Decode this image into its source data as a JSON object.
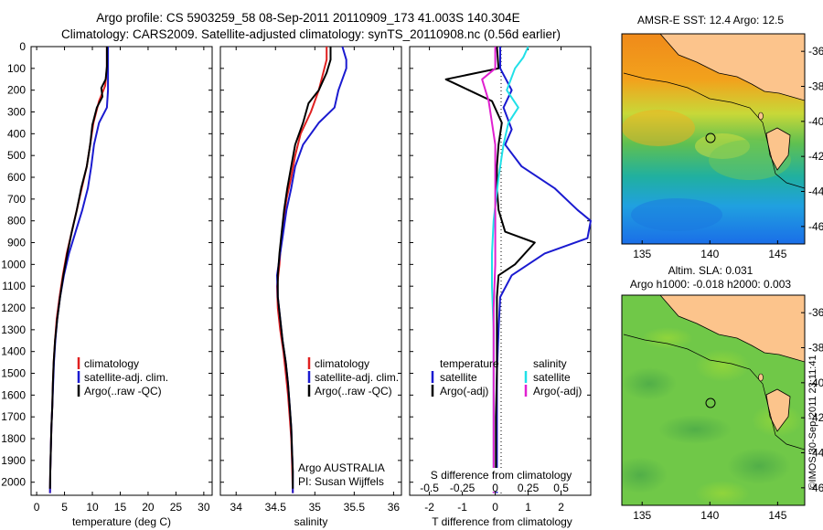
{
  "header": {
    "title_line1": "Argo profile: CS 5903259_58 08-Sep-2011 20110909_173 41.003S 140.304E",
    "title_line2": "Climatology: CARS2009. Satellite-adjusted climatology: synTS_20110908.nc (0.56d earlier)"
  },
  "colors": {
    "climatology": "#e02020",
    "satellite": "#1a1ad0",
    "argo": "#000000",
    "sat_salinity": "#20e0e8",
    "argo_salinity": "#e020d0",
    "land": "#fcc48c"
  },
  "depth_axis": {
    "ylim": [
      0,
      2060
    ],
    "ticks": [
      0,
      100,
      200,
      300,
      400,
      500,
      600,
      700,
      800,
      900,
      1000,
      1100,
      1200,
      1300,
      1400,
      1500,
      1600,
      1700,
      1800,
      1900,
      2000
    ]
  },
  "chart_data": [
    {
      "type": "line",
      "xlabel": "temperature (deg C)",
      "xlim": [
        -1,
        31.5
      ],
      "xticks": [
        0,
        5,
        10,
        15,
        20,
        25,
        30
      ],
      "legend": [
        "climatology",
        "satellite-adj. clim.",
        "Argo(..raw -QC)"
      ],
      "series": [
        {
          "name": "climatology",
          "color": "#e02020",
          "points": [
            [
              12.6,
              0
            ],
            [
              12.6,
              100
            ],
            [
              12.3,
              180
            ],
            [
              11.2,
              250
            ],
            [
              10.2,
              350
            ],
            [
              9.6,
              450
            ],
            [
              9.0,
              550
            ],
            [
              8.1,
              650
            ],
            [
              7.2,
              750
            ],
            [
              6.3,
              850
            ],
            [
              5.4,
              950
            ],
            [
              4.7,
              1050
            ],
            [
              4.1,
              1150
            ],
            [
              3.6,
              1250
            ],
            [
              3.3,
              1350
            ],
            [
              3.05,
              1450
            ],
            [
              2.9,
              1550
            ],
            [
              2.8,
              1650
            ],
            [
              2.65,
              1750
            ],
            [
              2.55,
              1850
            ],
            [
              2.45,
              1950
            ],
            [
              2.4,
              2050
            ]
          ]
        },
        {
          "name": "satellite-adj. clim.",
          "color": "#1a1ad0",
          "points": [
            [
              12.8,
              0
            ],
            [
              12.8,
              100
            ],
            [
              12.8,
              200
            ],
            [
              12.6,
              280
            ],
            [
              11.2,
              350
            ],
            [
              10.3,
              450
            ],
            [
              9.8,
              550
            ],
            [
              9.2,
              650
            ],
            [
              8.2,
              750
            ],
            [
              7.0,
              850
            ],
            [
              5.8,
              950
            ],
            [
              4.9,
              1050
            ],
            [
              4.2,
              1150
            ],
            [
              3.7,
              1250
            ],
            [
              3.35,
              1350
            ],
            [
              3.1,
              1450
            ],
            [
              2.95,
              1550
            ],
            [
              2.8,
              1650
            ],
            [
              2.65,
              1750
            ],
            [
              2.55,
              1850
            ],
            [
              2.45,
              1950
            ],
            [
              2.4,
              2050
            ]
          ]
        },
        {
          "name": "Argo(..raw -QC)",
          "color": "#000000",
          "points": [
            [
              12.6,
              0
            ],
            [
              12.6,
              90
            ],
            [
              12.4,
              150
            ],
            [
              11.6,
              190
            ],
            [
              11.8,
              230
            ],
            [
              10.8,
              280
            ],
            [
              10.0,
              360
            ],
            [
              9.6,
              450
            ],
            [
              9.0,
              550
            ],
            [
              8.0,
              650
            ],
            [
              7.2,
              750
            ],
            [
              6.3,
              850
            ],
            [
              5.5,
              950
            ],
            [
              4.8,
              1050
            ],
            [
              4.2,
              1150
            ],
            [
              3.7,
              1250
            ],
            [
              3.3,
              1350
            ],
            [
              3.05,
              1450
            ],
            [
              2.9,
              1550
            ],
            [
              2.8,
              1650
            ],
            [
              2.65,
              1750
            ],
            [
              2.55,
              1850
            ],
            [
              2.45,
              1950
            ],
            [
              2.4,
              2030
            ]
          ]
        }
      ]
    },
    {
      "type": "line",
      "xlabel": "salinity",
      "xlim": [
        33.8,
        36.1
      ],
      "xticks": [
        34,
        34.5,
        35,
        35.5,
        36
      ],
      "xtick_labels": [
        "34",
        "34.5",
        "35",
        "35.5",
        "36"
      ],
      "legend": [
        "climatology",
        "satellite-adj. clim.",
        "Argo(..raw -QC)"
      ],
      "annotation": [
        "Argo AUSTRALIA",
        "PI: Susan Wijffels"
      ],
      "series": [
        {
          "name": "climatology",
          "color": "#e02020",
          "points": [
            [
              35.15,
              0
            ],
            [
              35.15,
              60
            ],
            [
              35.05,
              200
            ],
            [
              34.95,
              300
            ],
            [
              34.82,
              400
            ],
            [
              34.75,
              500
            ],
            [
              34.7,
              600
            ],
            [
              34.64,
              700
            ],
            [
              34.6,
              800
            ],
            [
              34.57,
              900
            ],
            [
              34.55,
              1000
            ],
            [
              34.52,
              1100
            ],
            [
              34.53,
              1200
            ],
            [
              34.56,
              1300
            ],
            [
              34.6,
              1400
            ],
            [
              34.63,
              1500
            ],
            [
              34.66,
              1600
            ],
            [
              34.68,
              1700
            ],
            [
              34.7,
              1800
            ],
            [
              34.71,
              1900
            ],
            [
              34.72,
              2050
            ]
          ]
        },
        {
          "name": "satellite-adj. clim.",
          "color": "#1a1ad0",
          "points": [
            [
              35.35,
              0
            ],
            [
              35.4,
              60
            ],
            [
              35.4,
              100
            ],
            [
              35.3,
              200
            ],
            [
              35.25,
              280
            ],
            [
              35.05,
              350
            ],
            [
              34.85,
              450
            ],
            [
              34.75,
              550
            ],
            [
              34.7,
              650
            ],
            [
              34.64,
              750
            ],
            [
              34.6,
              850
            ],
            [
              34.56,
              950
            ],
            [
              34.52,
              1050
            ],
            [
              34.53,
              1150
            ],
            [
              34.56,
              1250
            ],
            [
              34.59,
              1350
            ],
            [
              34.63,
              1450
            ],
            [
              34.66,
              1550
            ],
            [
              34.68,
              1650
            ],
            [
              34.7,
              1750
            ],
            [
              34.71,
              1850
            ],
            [
              34.72,
              1950
            ],
            [
              34.72,
              2050
            ]
          ]
        },
        {
          "name": "Argo(..raw -QC)",
          "color": "#000000",
          "points": [
            [
              35.2,
              0
            ],
            [
              35.2,
              60
            ],
            [
              35.15,
              120
            ],
            [
              35.05,
              200
            ],
            [
              34.92,
              260
            ],
            [
              34.85,
              350
            ],
            [
              34.75,
              450
            ],
            [
              34.7,
              550
            ],
            [
              34.65,
              650
            ],
            [
              34.61,
              750
            ],
            [
              34.58,
              850
            ],
            [
              34.55,
              950
            ],
            [
              34.53,
              1050
            ],
            [
              34.53,
              1150
            ],
            [
              34.56,
              1250
            ],
            [
              34.59,
              1350
            ],
            [
              34.63,
              1450
            ],
            [
              34.66,
              1550
            ],
            [
              34.68,
              1650
            ],
            [
              34.7,
              1750
            ],
            [
              34.71,
              1850
            ],
            [
              34.72,
              1950
            ],
            [
              34.72,
              2030
            ]
          ]
        }
      ]
    },
    {
      "type": "line",
      "xlabel": "T difference from climatology",
      "top_label": "S difference from climatology",
      "xlim": [
        -2.6,
        2.9
      ],
      "xticks": [
        -2,
        -1,
        0,
        1,
        2
      ],
      "top_ticks": [
        -0.5,
        -0.25,
        0,
        0.25,
        0.5
      ],
      "top_tick_labels": [
        "-0.5",
        "-0.25",
        "0",
        "0.25",
        "0.5"
      ],
      "legend_left_title": "temperature",
      "legend_right_title": "salinity",
      "legend_left": [
        "satellite",
        "Argo(-adj)"
      ],
      "legend_right": [
        "satellite",
        "Argo(-adj)"
      ],
      "series": [
        {
          "name": "satellite",
          "color": "#1a1ad0",
          "points": [
            [
              0.15,
              0
            ],
            [
              0.15,
              100
            ],
            [
              0.5,
              200
            ],
            [
              0.25,
              280
            ],
            [
              0.5,
              380
            ],
            [
              0.3,
              450
            ],
            [
              0.8,
              550
            ],
            [
              1.8,
              650
            ],
            [
              2.5,
              750
            ],
            [
              2.9,
              800
            ],
            [
              2.8,
              880
            ],
            [
              1.5,
              950
            ],
            [
              0.5,
              1050
            ],
            [
              0.15,
              1150
            ],
            [
              0.1,
              1300
            ],
            [
              0.05,
              1500
            ],
            [
              0.05,
              1700
            ],
            [
              0.05,
              1900
            ],
            [
              0.05,
              2050
            ]
          ]
        },
        {
          "name": "Argo(-adj)",
          "color": "#000000",
          "points": [
            [
              0.05,
              0
            ],
            [
              0.1,
              100
            ],
            [
              -1.5,
              150
            ],
            [
              -0.8,
              200
            ],
            [
              -0.1,
              250
            ],
            [
              0.2,
              350
            ],
            [
              0.1,
              450
            ],
            [
              0.05,
              550
            ],
            [
              0.05,
              650
            ],
            [
              0.1,
              750
            ],
            [
              0.3,
              850
            ],
            [
              1.2,
              900
            ],
            [
              0.6,
              1000
            ],
            [
              0.1,
              1050
            ],
            [
              0.05,
              1150
            ],
            [
              0.05,
              1300
            ],
            [
              0.05,
              1500
            ],
            [
              0.02,
              1700
            ],
            [
              0.02,
              1900
            ],
            [
              0.02,
              2030
            ]
          ]
        },
        {
          "name": "salinity satellite",
          "color": "#20e0e8",
          "points": [
            [
              1.0,
              0
            ],
            [
              0.85,
              50
            ],
            [
              0.6,
              100
            ],
            [
              0.35,
              200
            ],
            [
              0.7,
              280
            ],
            [
              0.4,
              350
            ],
            [
              0.25,
              450
            ],
            [
              0.1,
              600
            ],
            [
              -0.05,
              800
            ],
            [
              -0.1,
              950
            ],
            [
              -0.1,
              1100
            ],
            [
              -0.05,
              1300
            ],
            [
              -0.05,
              1500
            ],
            [
              -0.05,
              1700
            ],
            [
              -0.05,
              1900
            ],
            [
              -0.05,
              2050
            ]
          ]
        },
        {
          "name": "salinity Argo(-adj)",
          "color": "#e020d0",
          "points": [
            [
              0.0,
              0
            ],
            [
              0.0,
              100
            ],
            [
              -0.4,
              150
            ],
            [
              -0.2,
              250
            ],
            [
              -0.1,
              350
            ],
            [
              0.0,
              450
            ],
            [
              0.0,
              600
            ],
            [
              0.0,
              800
            ],
            [
              0.0,
              1000
            ],
            [
              -0.05,
              1200
            ],
            [
              -0.05,
              1400
            ],
            [
              -0.05,
              1600
            ],
            [
              -0.05,
              1800
            ],
            [
              -0.05,
              2050
            ]
          ]
        }
      ]
    }
  ],
  "maps": {
    "top": {
      "title": "AMSR-E SST: 12.4 Argo: 12.5",
      "yticks": [
        "-36",
        "-38",
        "-40",
        "-42",
        "-44",
        "-46"
      ],
      "xticks": [
        "135",
        "140",
        "145"
      ]
    },
    "bottom": {
      "title1": "Altim. SLA: 0.031",
      "title2": "Argo h1000: -0.018 h2000: 0.003",
      "yticks": [
        "-36",
        "-38",
        "-40",
        "-42",
        "-44",
        "-46"
      ],
      "xticks": [
        "135",
        "140",
        "145"
      ]
    },
    "lat_range": [
      -47,
      -35
    ],
    "lon_range": [
      133.5,
      147
    ],
    "argo_position": {
      "lat": -41.003,
      "lon": 140.304
    }
  },
  "side_label": "©IMOS 30-Sep-2011 23:11:41"
}
